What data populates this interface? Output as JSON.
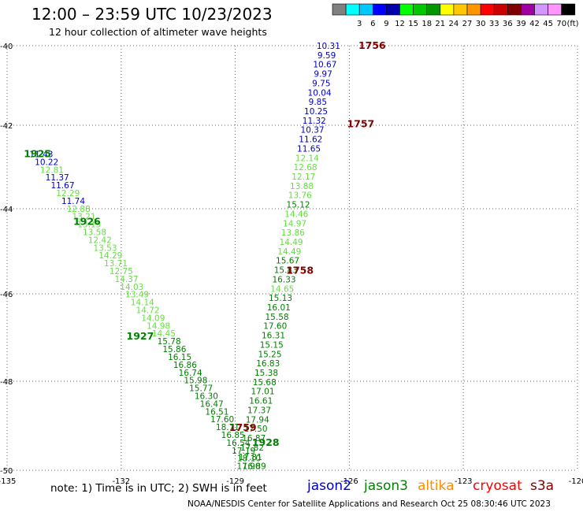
{
  "header": {
    "title": "12:00 – 23:59 UTC 10/23/2023",
    "subtitle": "12 hour collection of altimeter wave heights"
  },
  "colorbar": {
    "unit": "(ft)",
    "bins": [
      {
        "label": "",
        "color": "#808080"
      },
      {
        "label": "3",
        "color": "#00ffff"
      },
      {
        "label": "6",
        "color": "#00c8ff"
      },
      {
        "label": "9",
        "color": "#0000ff"
      },
      {
        "label": "12",
        "color": "#0000aa"
      },
      {
        "label": "15",
        "color": "#00ff00"
      },
      {
        "label": "18",
        "color": "#00c800"
      },
      {
        "label": "21",
        "color": "#009600"
      },
      {
        "label": "24",
        "color": "#ffff00"
      },
      {
        "label": "27",
        "color": "#ffc800"
      },
      {
        "label": "30",
        "color": "#ff9600"
      },
      {
        "label": "33",
        "color": "#ff0000"
      },
      {
        "label": "36",
        "color": "#c80000"
      },
      {
        "label": "39",
        "color": "#800000"
      },
      {
        "label": "42",
        "color": "#a000a0"
      },
      {
        "label": "45",
        "color": "#d296ff"
      },
      {
        "label": "70",
        "color": "#ff96ff"
      },
      {
        "label": "",
        "color": "#000000"
      }
    ]
  },
  "map": {
    "lon_range": [
      -135,
      -120
    ],
    "lat_range": [
      -50,
      -40
    ],
    "lon_ticks": [
      "-135",
      "-132",
      "-129",
      "-126",
      "-123",
      "-120"
    ],
    "lat_ticks": [
      "-40",
      "-42",
      "-44",
      "-46",
      "-48",
      "-50"
    ],
    "grid": "dotted",
    "colors": {
      "jason2": "#0000cc",
      "jason3": "#008000",
      "cryosat": "#ff0000",
      "s3a": "#800000",
      "light": "#66dd44"
    },
    "passes": [
      {
        "satellite": "s3a",
        "times": [
          {
            "label": "1756",
            "lon": -125.4,
            "lat": -40.0
          },
          {
            "label": "1757",
            "lon": -125.7,
            "lat": -41.85
          },
          {
            "label": "1758",
            "lon": -127.3,
            "lat": -45.3
          },
          {
            "label": "1759",
            "lon": -128.8,
            "lat": -49.0
          }
        ],
        "lon_start": -126.55,
        "lon_end": -128.65,
        "heights": [
          "10.31",
          "9.59",
          "10.67",
          "9.97",
          "9.75",
          "10.04",
          "9.85",
          "10.25",
          "11.32",
          "10.37",
          "11.62",
          "11.65",
          "12.14",
          "12.68",
          "12.17",
          "13.88",
          "13.76",
          "15.12",
          "14.46",
          "14.97",
          "13.86",
          "14.49",
          "14.49",
          "15.67",
          "15.83",
          "16.33",
          "14.65",
          "15.13",
          "16.01",
          "15.58",
          "17.60",
          "16.31",
          "15.15",
          "15.25",
          "16.83",
          "15.38",
          "15.68",
          "17.01",
          "16.61",
          "17.37",
          "17.94",
          "17.50",
          "16.87",
          "17.82",
          "17.81",
          "17.90"
        ],
        "lat_start": -40.0,
        "lat_end": -49.9
      },
      {
        "satellite": "jason3",
        "times": [
          {
            "label": "1925",
            "lon": -134.2,
            "lat": -42.55
          },
          {
            "label": "1926",
            "lon": -132.9,
            "lat": -44.15
          },
          {
            "label": "1927",
            "lon": -131.5,
            "lat": -46.85
          },
          {
            "label": "1928",
            "lon": -128.2,
            "lat": -49.35
          }
        ],
        "lon_start": -134.1,
        "lon_end": -128.5,
        "heights": [
          "11.43",
          "10.22",
          "12.81",
          "11.37",
          "11.67",
          "12.29",
          "11.74",
          "12.88",
          "13.21",
          "13.15",
          "13.58",
          "12.42",
          "13.53",
          "14.29",
          "13.71",
          "12.75",
          "14.37",
          "14.03",
          "13.49",
          "14.14",
          "14.72",
          "14.09",
          "14.98",
          "14.45",
          "15.78",
          "15.86",
          "16.15",
          "16.86",
          "16.74",
          "15.98",
          "15.77",
          "16.30",
          "16.47",
          "16.51",
          "17.60",
          "18.71",
          "16.85",
          "16.54",
          "17.19",
          "18.10",
          "16.89"
        ],
        "lat_start": -42.55,
        "lat_end": -49.9
      }
    ]
  },
  "footnote": "note:  1) Time is in UTC; 2) SWH is in feet",
  "legend": {
    "jason2": "jason2",
    "jason3": "jason3",
    "altika": "altika",
    "cryosat": "cryosat",
    "s3a": "s3a"
  },
  "footer": "NOAA/NESDIS Center for Satellite Applications and Research    Oct 25 08:30:46 UTC 2023"
}
